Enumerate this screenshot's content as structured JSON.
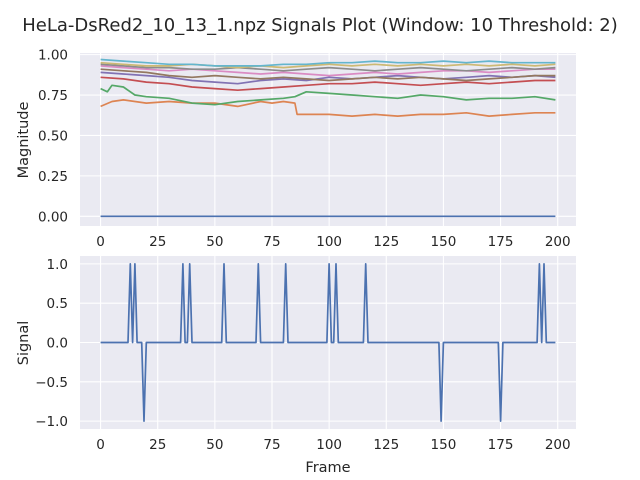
{
  "figure_title": "HeLa-DsRed2_10_13_1.npz Signals Plot (Window: 10 Threshold: 2)",
  "chart_data": [
    {
      "type": "line",
      "title": "",
      "xlabel": "",
      "ylabel": "Magnitude",
      "xlim": [
        -9,
        208
      ],
      "ylim": [
        -0.06,
        1.01
      ],
      "xticks": [
        0,
        25,
        50,
        75,
        100,
        125,
        150,
        175,
        200
      ],
      "yticks": [
        0.0,
        0.25,
        0.5,
        0.75,
        1.0
      ],
      "ytick_labels": [
        "0.00",
        "0.25",
        "0.50",
        "0.75",
        "1.00"
      ],
      "grid": true,
      "series": [
        {
          "color": "#4c72b0",
          "x": [
            0,
            199
          ],
          "y": [
            0.0,
            0.0
          ]
        },
        {
          "color": "#dd8452",
          "x": [
            0,
            5,
            10,
            20,
            30,
            40,
            50,
            60,
            70,
            75,
            80,
            85,
            86,
            90,
            100,
            110,
            120,
            130,
            140,
            150,
            160,
            170,
            180,
            190,
            199
          ],
          "y": [
            0.68,
            0.71,
            0.72,
            0.7,
            0.71,
            0.7,
            0.7,
            0.68,
            0.71,
            0.7,
            0.71,
            0.7,
            0.63,
            0.63,
            0.63,
            0.62,
            0.63,
            0.62,
            0.63,
            0.63,
            0.64,
            0.62,
            0.63,
            0.64,
            0.64
          ]
        },
        {
          "color": "#55a868",
          "x": [
            0,
            3,
            5,
            10,
            15,
            20,
            30,
            40,
            50,
            60,
            70,
            80,
            85,
            90,
            100,
            110,
            120,
            130,
            140,
            150,
            160,
            170,
            180,
            190,
            199
          ],
          "y": [
            0.79,
            0.77,
            0.81,
            0.8,
            0.75,
            0.74,
            0.73,
            0.7,
            0.69,
            0.71,
            0.72,
            0.73,
            0.74,
            0.77,
            0.76,
            0.75,
            0.74,
            0.73,
            0.75,
            0.74,
            0.72,
            0.73,
            0.73,
            0.74,
            0.72
          ]
        },
        {
          "color": "#c44e52",
          "x": [
            0,
            10,
            20,
            30,
            40,
            50,
            60,
            70,
            80,
            90,
            100,
            110,
            120,
            130,
            140,
            150,
            160,
            170,
            180,
            190,
            199
          ],
          "y": [
            0.86,
            0.85,
            0.83,
            0.82,
            0.8,
            0.79,
            0.78,
            0.79,
            0.8,
            0.81,
            0.82,
            0.82,
            0.83,
            0.82,
            0.81,
            0.82,
            0.83,
            0.82,
            0.83,
            0.84,
            0.84
          ]
        },
        {
          "color": "#8172b3",
          "x": [
            0,
            10,
            20,
            30,
            40,
            50,
            60,
            70,
            80,
            90,
            100,
            110,
            120,
            130,
            140,
            150,
            160,
            170,
            180,
            190,
            199
          ],
          "y": [
            0.89,
            0.88,
            0.87,
            0.86,
            0.84,
            0.83,
            0.82,
            0.84,
            0.85,
            0.84,
            0.86,
            0.85,
            0.86,
            0.87,
            0.86,
            0.85,
            0.86,
            0.87,
            0.86,
            0.87,
            0.86
          ]
        },
        {
          "color": "#937860",
          "x": [
            0,
            10,
            20,
            30,
            40,
            50,
            60,
            70,
            80,
            90,
            100,
            110,
            120,
            130,
            140,
            150,
            160,
            170,
            180,
            190,
            199
          ],
          "y": [
            0.91,
            0.9,
            0.89,
            0.87,
            0.86,
            0.87,
            0.86,
            0.85,
            0.86,
            0.85,
            0.84,
            0.85,
            0.86,
            0.85,
            0.86,
            0.85,
            0.84,
            0.85,
            0.86,
            0.87,
            0.87
          ]
        },
        {
          "color": "#da8bc3",
          "x": [
            0,
            10,
            20,
            30,
            40,
            50,
            60,
            70,
            80,
            90,
            100,
            110,
            120,
            130,
            140,
            150,
            160,
            170,
            180,
            190,
            199
          ],
          "y": [
            0.93,
            0.92,
            0.91,
            0.9,
            0.91,
            0.9,
            0.89,
            0.88,
            0.89,
            0.88,
            0.87,
            0.88,
            0.89,
            0.88,
            0.89,
            0.9,
            0.9,
            0.89,
            0.9,
            0.91,
            0.91
          ]
        },
        {
          "color": "#8c8c8c",
          "x": [
            0,
            10,
            20,
            30,
            40,
            50,
            60,
            70,
            80,
            90,
            100,
            110,
            120,
            130,
            140,
            150,
            160,
            170,
            180,
            190,
            199
          ],
          "y": [
            0.94,
            0.93,
            0.92,
            0.92,
            0.91,
            0.91,
            0.92,
            0.91,
            0.9,
            0.91,
            0.92,
            0.91,
            0.9,
            0.91,
            0.92,
            0.91,
            0.9,
            0.91,
            0.92,
            0.91,
            0.92
          ]
        },
        {
          "color": "#ccb974",
          "x": [
            0,
            10,
            20,
            30,
            40,
            50,
            60,
            70,
            80,
            90,
            100,
            110,
            120,
            130,
            140,
            150,
            160,
            170,
            180,
            190,
            199
          ],
          "y": [
            0.95,
            0.94,
            0.93,
            0.93,
            0.94,
            0.93,
            0.92,
            0.93,
            0.92,
            0.93,
            0.94,
            0.93,
            0.94,
            0.93,
            0.94,
            0.93,
            0.94,
            0.93,
            0.94,
            0.93,
            0.94
          ]
        },
        {
          "color": "#64b5cd",
          "x": [
            0,
            10,
            20,
            30,
            40,
            50,
            60,
            70,
            80,
            90,
            100,
            110,
            120,
            130,
            140,
            150,
            160,
            170,
            180,
            190,
            199
          ],
          "y": [
            0.97,
            0.96,
            0.95,
            0.94,
            0.94,
            0.93,
            0.93,
            0.93,
            0.94,
            0.94,
            0.95,
            0.95,
            0.96,
            0.95,
            0.95,
            0.96,
            0.95,
            0.96,
            0.95,
            0.95,
            0.95
          ]
        }
      ]
    },
    {
      "type": "line",
      "title": "",
      "xlabel": "Frame",
      "ylabel": "Signal",
      "xlim": [
        -9,
        208
      ],
      "ylim": [
        -1.1,
        1.1
      ],
      "xticks": [
        0,
        25,
        50,
        75,
        100,
        125,
        150,
        175,
        200
      ],
      "yticks": [
        -1.0,
        -0.5,
        0.0,
        0.5,
        1.0
      ],
      "ytick_labels": [
        "−1.0",
        "−0.5",
        "0.0",
        "0.5",
        "1.0"
      ],
      "grid": true,
      "series": [
        {
          "color": "#4c72b0",
          "x": [
            0,
            12,
            13,
            14,
            15,
            16,
            17,
            18,
            19,
            20,
            35,
            36,
            37,
            38,
            39,
            40,
            53,
            54,
            55,
            68,
            69,
            70,
            80,
            81,
            82,
            99,
            100,
            101,
            102,
            103,
            104,
            115,
            116,
            117,
            148,
            149,
            150,
            174,
            175,
            176,
            191,
            192,
            193,
            194,
            195,
            199
          ],
          "y": [
            0,
            0,
            1,
            0,
            1,
            0,
            0,
            0,
            -1,
            0,
            0,
            1,
            0,
            0,
            1,
            0,
            0,
            1,
            0,
            0,
            1,
            0,
            0,
            1,
            0,
            0,
            1,
            0,
            0,
            1,
            0,
            0,
            1,
            0,
            0,
            -1,
            0,
            0,
            -1,
            0,
            0,
            1,
            0,
            1,
            0,
            0
          ]
        }
      ]
    }
  ]
}
